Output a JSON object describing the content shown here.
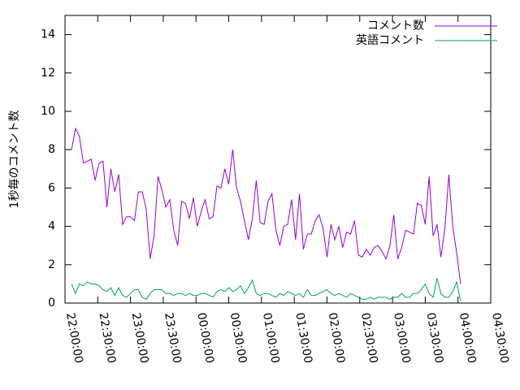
{
  "chart_data": {
    "type": "line",
    "ylabel": "1秒毎のコメント数",
    "xlim": [
      0,
      390
    ],
    "xticks": [
      {
        "value": 0,
        "label": "22:00:00"
      },
      {
        "value": 30,
        "label": "22:30:00"
      },
      {
        "value": 60,
        "label": "23:00:00"
      },
      {
        "value": 90,
        "label": "23:30:00"
      },
      {
        "value": 120,
        "label": "00:00:00"
      },
      {
        "value": 150,
        "label": "00:30:00"
      },
      {
        "value": 180,
        "label": "01:00:00"
      },
      {
        "value": 210,
        "label": "01:30:00"
      },
      {
        "value": 240,
        "label": "02:00:00"
      },
      {
        "value": 270,
        "label": "02:30:00"
      },
      {
        "value": 300,
        "label": "03:00:00"
      },
      {
        "value": 330,
        "label": "03:30:00"
      },
      {
        "value": 360,
        "label": "04:00:00"
      },
      {
        "value": 390,
        "label": "04:30:00"
      }
    ],
    "ylim": [
      0,
      15
    ],
    "yticks": [
      0,
      2,
      4,
      6,
      8,
      10,
      12,
      14
    ],
    "legend": "top-right",
    "x": [
      6,
      9.6,
      13.2,
      16.8,
      20.4,
      24,
      27.6,
      31.2,
      34.8,
      38.4,
      42,
      45.6,
      49.2,
      52.8,
      56.4,
      60,
      63.6,
      67.2,
      70.8,
      74.4,
      78,
      81.6,
      85.2,
      88.8,
      92.4,
      96,
      99.6,
      103.2,
      106.8,
      110.4,
      114,
      117.6,
      121.2,
      124.8,
      128.4,
      132,
      135.6,
      139.2,
      142.8,
      146.4,
      150,
      153.6,
      157.2,
      160.8,
      164.4,
      168,
      171.6,
      175.2,
      178.8,
      182.4,
      186,
      189.6,
      193.2,
      196.8,
      200.4,
      204,
      207.6,
      211.2,
      214.8,
      218.4,
      222,
      225.6,
      229.2,
      232.8,
      236.4,
      240,
      243.6,
      247.2,
      250.8,
      254.4,
      258,
      261.6,
      265.2,
      268.8,
      272.4,
      276,
      279.6,
      283.2,
      286.8,
      290.4,
      294,
      297.6,
      301.2,
      304.8,
      308.4,
      312,
      315.6,
      319.2,
      322.8,
      326.4,
      330,
      333.6,
      337.2,
      340.8,
      344.4,
      348,
      351.6,
      355.2,
      358.8,
      362.4
    ],
    "series": [
      {
        "name": "コメント数",
        "color": "#9400d3",
        "values": [
          8.0,
          9.1,
          8.7,
          7.3,
          7.4,
          7.5,
          6.4,
          7.3,
          7.4,
          5.0,
          7.0,
          5.8,
          6.7,
          4.1,
          4.5,
          4.5,
          4.3,
          5.8,
          5.8,
          4.9,
          2.3,
          3.5,
          6.6,
          5.9,
          5.0,
          5.4,
          3.8,
          3.0,
          5.3,
          5.2,
          4.4,
          5.5,
          4.0,
          4.8,
          5.4,
          4.4,
          4.5,
          6.1,
          6.0,
          7.0,
          6.2,
          8.0,
          6.0,
          5.3,
          4.3,
          3.3,
          4.4,
          6.4,
          4.2,
          4.1,
          5.3,
          5.7,
          3.8,
          3.0,
          4.0,
          4.1,
          5.4,
          3.3,
          5.7,
          2.8,
          3.6,
          3.6,
          4.3,
          4.6,
          3.9,
          2.4,
          4.1,
          3.3,
          4.0,
          2.9,
          3.7,
          3.6,
          4.3,
          2.5,
          2.4,
          2.8,
          2.5,
          2.9,
          3.0,
          2.7,
          2.3,
          3.0,
          4.6,
          2.3,
          2.9,
          3.8,
          3.7,
          3.6,
          5.2,
          5.1,
          4.1,
          6.6,
          3.5,
          4.1,
          2.4,
          3.9,
          6.7,
          4.0,
          2.6,
          1.0
        ]
      },
      {
        "name": "英語コメント",
        "color": "#009e73",
        "values": [
          1.0,
          0.5,
          1.0,
          0.9,
          1.1,
          1.0,
          1.0,
          0.9,
          0.7,
          0.6,
          0.8,
          0.4,
          0.8,
          0.4,
          0.3,
          0.5,
          0.7,
          0.7,
          0.3,
          0.2,
          0.5,
          0.7,
          0.7,
          0.7,
          0.5,
          0.5,
          0.4,
          0.5,
          0.5,
          0.4,
          0.5,
          0.4,
          0.4,
          0.5,
          0.5,
          0.4,
          0.3,
          0.6,
          0.7,
          0.6,
          0.8,
          0.6,
          0.7,
          0.9,
          0.5,
          0.8,
          1.2,
          0.5,
          0.4,
          0.5,
          0.5,
          0.4,
          0.3,
          0.5,
          0.4,
          0.6,
          0.5,
          0.4,
          0.5,
          0.3,
          0.7,
          0.4,
          0.4,
          0.5,
          0.6,
          0.7,
          0.5,
          0.4,
          0.5,
          0.4,
          0.3,
          0.5,
          0.4,
          0.3,
          0.2,
          0.2,
          0.3,
          0.2,
          0.3,
          0.3,
          0.3,
          0.2,
          0.3,
          0.3,
          0.5,
          0.3,
          0.3,
          0.5,
          0.5,
          0.7,
          1.0,
          0.5,
          0.3,
          1.3,
          0.5,
          0.3,
          0.3,
          0.6,
          1.1,
          0.1
        ]
      }
    ]
  }
}
